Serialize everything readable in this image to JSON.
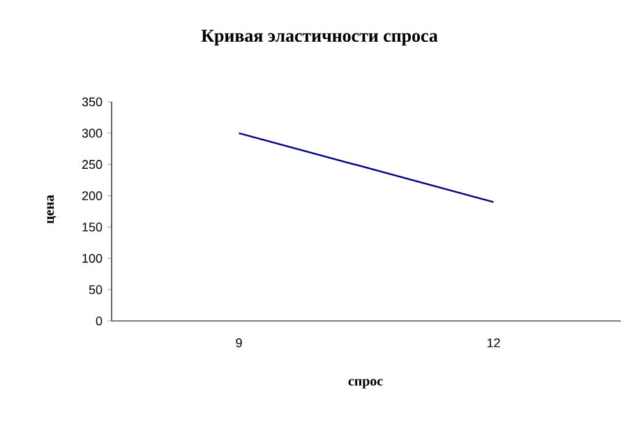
{
  "chart_data": {
    "type": "line",
    "title": "Кривая эластичности спроса",
    "xlabel": "спрос",
    "ylabel": "цена",
    "categories": [
      "9",
      "12"
    ],
    "series": [
      {
        "color": "#000080",
        "values": [
          300,
          190
        ]
      }
    ],
    "ylim": [
      0,
      350
    ],
    "yticks": [
      0,
      50,
      100,
      150,
      200,
      250,
      300,
      350
    ]
  }
}
